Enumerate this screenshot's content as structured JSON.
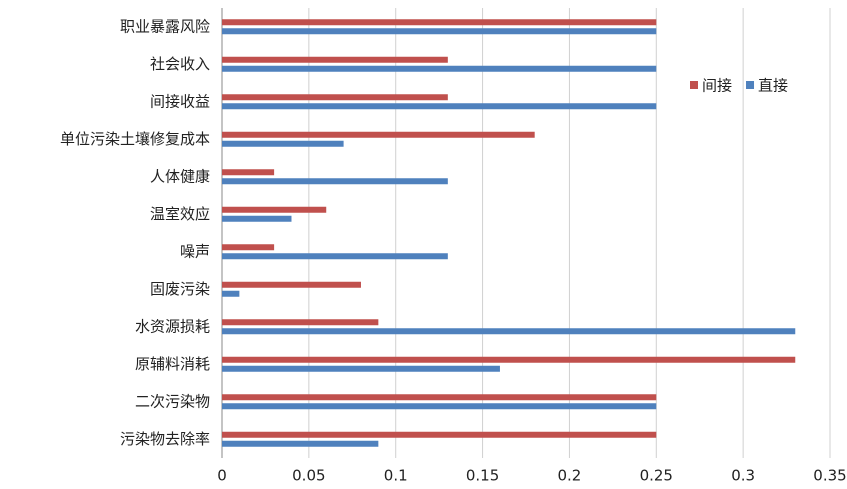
{
  "chart_data": {
    "type": "bar",
    "orientation": "horizontal",
    "categories": [
      "职业暴露风险",
      "社会收入",
      "间接收益",
      "单位污染土壤修复成本",
      "人体健康",
      "温室效应",
      "噪声",
      "固废污染",
      "水资源损耗",
      "原辅料消耗",
      "二次污染物",
      "污染物去除率"
    ],
    "series": [
      {
        "name": "间接",
        "color": "#c0504d",
        "values": [
          0.25,
          0.13,
          0.13,
          0.18,
          0.03,
          0.06,
          0.03,
          0.08,
          0.09,
          0.33,
          0.25,
          0.25
        ]
      },
      {
        "name": "直接",
        "color": "#4f81bd",
        "values": [
          0.25,
          0.25,
          0.25,
          0.07,
          0.13,
          0.04,
          0.13,
          0.01,
          0.33,
          0.16,
          0.25,
          0.09
        ]
      }
    ],
    "xlim": [
      0,
      0.35
    ],
    "xticks": [
      0,
      0.05,
      0.1,
      0.15,
      0.2,
      0.25,
      0.3,
      0.35
    ],
    "grid": true,
    "legend": "top-right"
  }
}
